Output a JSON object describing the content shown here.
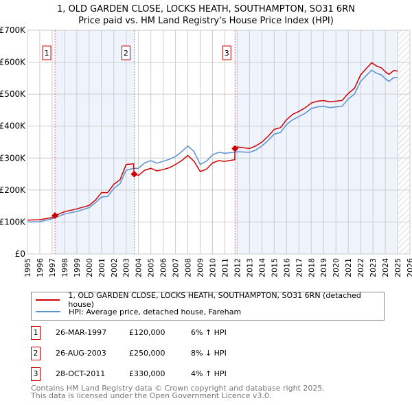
{
  "chart_data": {
    "type": "line",
    "title": "1, OLD GARDEN CLOSE, LOCKS HEATH, SOUTHAMPTON, SO31 6RN",
    "subtitle": "Price paid vs. HM Land Registry's House Price Index (HPI)",
    "xlim": [
      1995,
      2026
    ],
    "ylim": [
      0,
      700000
    ],
    "yticks": [
      0,
      100000,
      200000,
      300000,
      400000,
      500000,
      600000,
      700000
    ],
    "ytick_labels": [
      "£0",
      "£100K",
      "£200K",
      "£300K",
      "£400K",
      "£500K",
      "£600K",
      "£700K"
    ],
    "xticks": [
      1995,
      1996,
      1997,
      1998,
      1999,
      2000,
      2001,
      2002,
      2003,
      2004,
      2005,
      2006,
      2007,
      2008,
      2009,
      2010,
      2011,
      2012,
      2013,
      2014,
      2015,
      2016,
      2017,
      2018,
      2019,
      2020,
      2021,
      2022,
      2023,
      2024,
      2025,
      2026
    ],
    "grid": true,
    "series": [
      {
        "name": "1, OLD GARDEN CLOSE, LOCKS HEATH, SOUTHAMPTON, SO31 6RN (detached house)",
        "color": "#cc0000",
        "x": [
          1995,
          1996,
          1997,
          1997.23,
          1998,
          1999,
          2000,
          2000.5,
          2001,
          2001.5,
          2002,
          2002.5,
          2003,
          2003.6,
          2003.65,
          2004,
          2004.5,
          2005,
          2005.5,
          2006,
          2006.5,
          2007,
          2007.5,
          2008,
          2008.5,
          2009,
          2009.5,
          2010,
          2010.5,
          2011,
          2011.8,
          2011.82,
          2012,
          2013,
          2013.5,
          2014,
          2014.5,
          2015,
          2015.5,
          2016,
          2016.5,
          2017,
          2017.5,
          2018,
          2018.5,
          2019,
          2019.5,
          2020,
          2020.5,
          2021,
          2021.5,
          2022,
          2022.5,
          2022.9,
          2023.3,
          2023.7,
          2024,
          2024.3,
          2024.7,
          2025
        ],
        "y": [
          106,
          107,
          114,
          120,
          132,
          141,
          152,
          168,
          192,
          192,
          218,
          232,
          280,
          282,
          250,
          246,
          262,
          268,
          260,
          264,
          270,
          280,
          292,
          308,
          290,
          258,
          265,
          285,
          292,
          290,
          295,
          330,
          335,
          330,
          338,
          350,
          368,
          390,
          395,
          420,
          437,
          446,
          457,
          472,
          478,
          480,
          476,
          478,
          480,
          502,
          518,
          560,
          582,
          598,
          588,
          582,
          570,
          562,
          574,
          572
        ]
      },
      {
        "name": "HPI: Average price, detached house, Fareham",
        "color": "#5b8fd0",
        "x": [
          1995,
          1996,
          1997,
          1998,
          1999,
          2000,
          2000.5,
          2001,
          2001.5,
          2002,
          2002.5,
          2003,
          2003.6,
          2004,
          2004.5,
          2005,
          2005.5,
          2006,
          2006.5,
          2007,
          2007.5,
          2008,
          2008.5,
          2009,
          2009.5,
          2010,
          2010.5,
          2011,
          2011.8,
          2012,
          2013,
          2013.5,
          2014,
          2014.5,
          2015,
          2015.5,
          2016,
          2016.5,
          2017,
          2017.5,
          2018,
          2018.5,
          2019,
          2019.5,
          2020,
          2020.5,
          2021,
          2021.5,
          2022,
          2022.5,
          2022.9,
          2023.3,
          2023.7,
          2024,
          2024.3,
          2024.7,
          2025
        ],
        "y": [
          100,
          101,
          110,
          125,
          133,
          145,
          160,
          178,
          180,
          205,
          220,
          262,
          268,
          268,
          285,
          292,
          284,
          290,
          296,
          305,
          320,
          338,
          320,
          280,
          290,
          310,
          318,
          315,
          318,
          320,
          318,
          325,
          338,
          355,
          375,
          380,
          405,
          420,
          430,
          440,
          455,
          460,
          462,
          458,
          460,
          462,
          485,
          500,
          540,
          560,
          575,
          565,
          560,
          548,
          540,
          552,
          552
        ]
      }
    ],
    "y_unit": "thousand GBP",
    "sales": [
      {
        "num": "1",
        "x": 1997.23,
        "y": 120,
        "date": "26-MAR-1997",
        "price": "£120,000",
        "hpi": "6% ↑ HPI"
      },
      {
        "num": "2",
        "x": 2003.65,
        "y": 250,
        "date": "26-AUG-2003",
        "price": "£250,000",
        "hpi": "8% ↓ HPI"
      },
      {
        "num": "3",
        "x": 2011.82,
        "y": 330,
        "date": "28-OCT-2011",
        "price": "£330,000",
        "hpi": "4% ↑ HPI"
      }
    ],
    "shaded_ranges": [
      [
        1997.23,
        2003.65
      ],
      [
        2011.82,
        2025
      ]
    ],
    "hatch_from": 2025,
    "legend_placement": "below"
  },
  "footer": {
    "line1": "Contains HM Land Registry data © Crown copyright and database right 2025.",
    "line2": "This data is licensed under the Open Government Licence v3.0."
  }
}
